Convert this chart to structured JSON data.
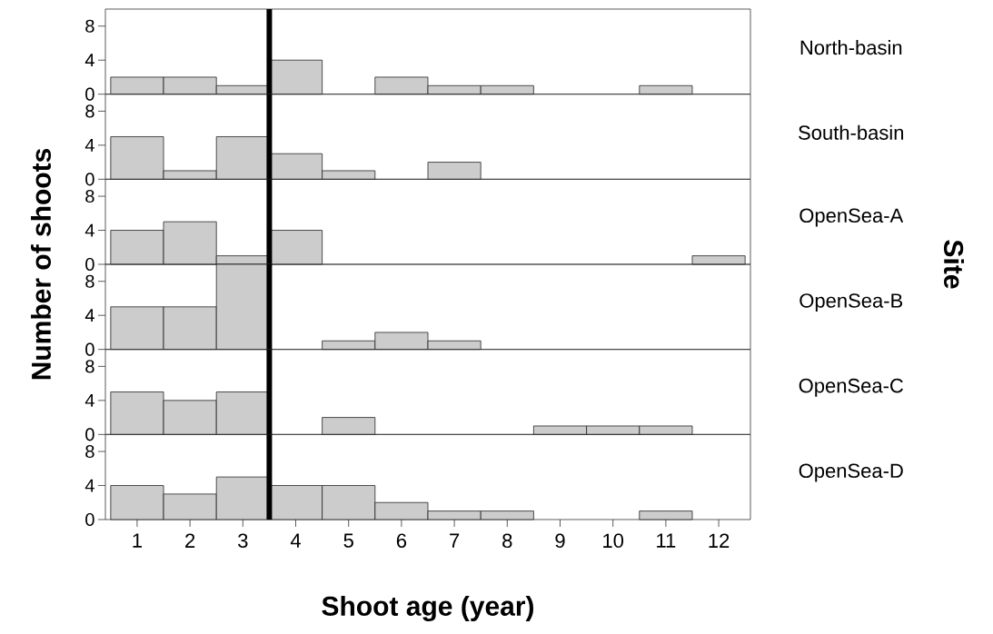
{
  "chart_data": [
    {
      "type": "histogram",
      "y2label": "North-basin",
      "ylabel": "Number of shoots",
      "annotations": [
        "Site"
      ],
      "bins": [
        0.5,
        1.5,
        2.5,
        3.5,
        4.5,
        5.5,
        6.5,
        7.5,
        8.5,
        9.5,
        10.5,
        11.5,
        12.5
      ],
      "values": [
        2,
        2,
        1,
        4,
        0,
        2,
        1,
        1,
        0,
        0,
        1,
        0
      ],
      "color": "#cccccc",
      "xlim": [
        0.4,
        12.6
      ],
      "ylim": [
        0,
        10
      ],
      "yticks": [
        0,
        4,
        8
      ],
      "ref_lines": [
        {
          "axis": "x",
          "value": 3.5,
          "color": "#000000"
        }
      ],
      "tick_labels": "y"
    },
    {
      "type": "histogram",
      "y2label": "South-basin",
      "bins": [
        0.5,
        1.5,
        2.5,
        3.5,
        4.5,
        5.5,
        6.5,
        7.5,
        8.5,
        9.5,
        10.5,
        11.5,
        12.5
      ],
      "values": [
        5,
        1,
        5,
        3,
        1,
        0,
        2,
        0,
        0,
        0,
        0,
        0
      ],
      "color": "#cccccc",
      "xlim": [
        0.4,
        12.6
      ],
      "ylim": [
        0,
        10
      ],
      "yticks": [
        0,
        4,
        8
      ],
      "ref_lines": [
        {
          "axis": "x",
          "value": 3.5,
          "color": "#000000"
        }
      ],
      "tick_labels": "y"
    },
    {
      "type": "histogram",
      "y2label": "OpenSea-A",
      "bins": [
        0.5,
        1.5,
        2.5,
        3.5,
        4.5,
        5.5,
        6.5,
        7.5,
        8.5,
        9.5,
        10.5,
        11.5,
        12.5
      ],
      "values": [
        4,
        5,
        1,
        4,
        0,
        0,
        0,
        0,
        0,
        0,
        0,
        1
      ],
      "color": "#cccccc",
      "xlim": [
        0.4,
        12.6
      ],
      "ylim": [
        0,
        10
      ],
      "yticks": [
        0,
        4,
        8
      ],
      "ref_lines": [
        {
          "axis": "x",
          "value": 3.5,
          "color": "#000000"
        }
      ],
      "tick_labels": "y"
    },
    {
      "type": "histogram",
      "y2label": "OpenSea-B",
      "bins": [
        0.5,
        1.5,
        2.5,
        3.5,
        4.5,
        5.5,
        6.5,
        7.5,
        8.5,
        9.5,
        10.5,
        11.5,
        12.5
      ],
      "values": [
        5,
        5,
        10,
        0,
        1,
        2,
        1,
        0,
        0,
        0,
        0,
        0
      ],
      "color": "#cccccc",
      "xlim": [
        0.4,
        12.6
      ],
      "ylim": [
        0,
        10
      ],
      "yticks": [
        0,
        4,
        8
      ],
      "ref_lines": [
        {
          "axis": "x",
          "value": 3.5,
          "color": "#000000"
        }
      ],
      "tick_labels": "y"
    },
    {
      "type": "histogram",
      "y2label": "OpenSea-C",
      "bins": [
        0.5,
        1.5,
        2.5,
        3.5,
        4.5,
        5.5,
        6.5,
        7.5,
        8.5,
        9.5,
        10.5,
        11.5,
        12.5
      ],
      "values": [
        5,
        4,
        5,
        0,
        2,
        0,
        0,
        0,
        1,
        1,
        1,
        0
      ],
      "color": "#cccccc",
      "xlim": [
        0.4,
        12.6
      ],
      "ylim": [
        0,
        10
      ],
      "yticks": [
        0,
        4,
        8
      ],
      "ref_lines": [
        {
          "axis": "x",
          "value": 3.5,
          "color": "#000000"
        }
      ],
      "tick_labels": "y"
    },
    {
      "type": "histogram",
      "y2label": "OpenSea-D",
      "xlabel": "Shoot age (year)",
      "bins": [
        0.5,
        1.5,
        2.5,
        3.5,
        4.5,
        5.5,
        6.5,
        7.5,
        8.5,
        9.5,
        10.5,
        11.5,
        12.5
      ],
      "values": [
        4,
        3,
        5,
        4,
        4,
        2,
        1,
        1,
        0,
        0,
        1,
        0
      ],
      "color": "#cccccc",
      "xlim": [
        0.4,
        12.6
      ],
      "ylim": [
        0,
        10
      ],
      "yticks": [
        0,
        4,
        8
      ],
      "xticks": [
        1,
        2,
        3,
        4,
        5,
        6,
        7,
        8,
        9,
        10,
        11,
        12
      ],
      "ref_lines": [
        {
          "axis": "x",
          "value": 3.5,
          "color": "#000000"
        }
      ]
    }
  ]
}
